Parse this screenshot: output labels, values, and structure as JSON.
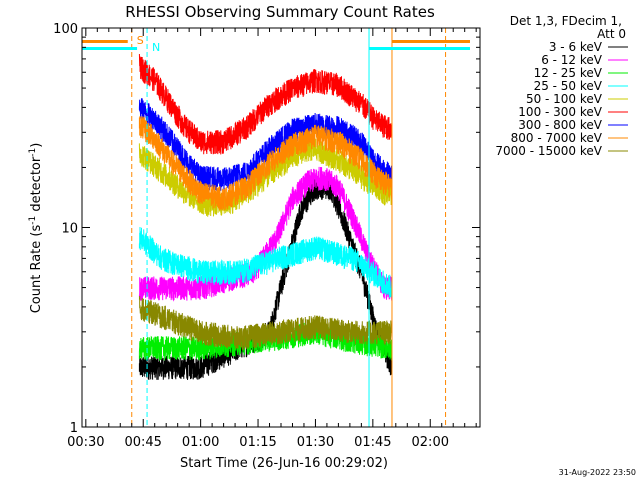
{
  "chart_data": {
    "type": "line",
    "title": "RHESSI Observing Summary Count Rates",
    "xlabel": "Start Time (26-Jun-16 00:29:02)",
    "ylabel": "Count Rate (s",
    "ylabel_sup": "-1",
    "ylabel_suffix": " detector",
    "ylabel_sup2": "-1",
    "ylabel_end": ")",
    "xaxis": {
      "min_minutes": 29,
      "max_minutes": 133,
      "ticks": [
        {
          "label": "00:30",
          "minutes": 30
        },
        {
          "label": "00:45",
          "minutes": 45
        },
        {
          "label": "01:00",
          "minutes": 60
        },
        {
          "label": "01:15",
          "minutes": 75
        },
        {
          "label": "01:30",
          "minutes": 90
        },
        {
          "label": "01:45",
          "minutes": 105
        },
        {
          "label": "02:00",
          "minutes": 120
        }
      ]
    },
    "yaxis": {
      "scale": "log",
      "ylim": [
        1,
        100
      ],
      "ticks": [
        {
          "label": "1",
          "value": 1
        },
        {
          "label": "10",
          "value": 10
        },
        {
          "label": "100",
          "value": 100
        }
      ]
    },
    "legend": {
      "placement": "right",
      "header": [
        "Det 1,3, FDecim 1,",
        "Att 0"
      ]
    },
    "series": [
      {
        "name": "3 - 6 keV",
        "color": "#000000",
        "start": 44,
        "end": 110,
        "points": [
          [
            44,
            2
          ],
          [
            50,
            2
          ],
          [
            60,
            2
          ],
          [
            70,
            2.5
          ],
          [
            78,
            3
          ],
          [
            82,
            6
          ],
          [
            86,
            12
          ],
          [
            90,
            16
          ],
          [
            94,
            16
          ],
          [
            98,
            10
          ],
          [
            102,
            6
          ],
          [
            106,
            3
          ],
          [
            110,
            2
          ]
        ]
      },
      {
        "name": "6 - 12 keV",
        "color": "#ff00ff",
        "start": 44,
        "end": 110,
        "points": [
          [
            44,
            5
          ],
          [
            60,
            5
          ],
          [
            74,
            6
          ],
          [
            80,
            9
          ],
          [
            84,
            14
          ],
          [
            88,
            17
          ],
          [
            92,
            18
          ],
          [
            96,
            16
          ],
          [
            100,
            11
          ],
          [
            104,
            7
          ],
          [
            108,
            5
          ],
          [
            110,
            5
          ]
        ]
      },
      {
        "name": "12 - 25 keV",
        "color": "#00ee00",
        "start": 44,
        "end": 110,
        "points": [
          [
            44,
            2.5
          ],
          [
            60,
            2.5
          ],
          [
            80,
            2.8
          ],
          [
            90,
            3
          ],
          [
            100,
            2.7
          ],
          [
            110,
            2.5
          ]
        ]
      },
      {
        "name": "25 - 50 keV",
        "color": "#00ffff",
        "start": 44,
        "end": 110,
        "points": [
          [
            44,
            9
          ],
          [
            50,
            7
          ],
          [
            60,
            6
          ],
          [
            70,
            6
          ],
          [
            80,
            7
          ],
          [
            90,
            8
          ],
          [
            100,
            7
          ],
          [
            110,
            5
          ]
        ]
      },
      {
        "name": "50 - 100 keV",
        "color": "#cccc00",
        "start": 44,
        "end": 110,
        "points": [
          [
            44,
            24
          ],
          [
            50,
            19
          ],
          [
            56,
            15
          ],
          [
            62,
            13
          ],
          [
            68,
            13.5
          ],
          [
            74,
            16
          ],
          [
            80,
            20
          ],
          [
            86,
            24
          ],
          [
            90,
            25
          ],
          [
            96,
            22
          ],
          [
            102,
            18
          ],
          [
            108,
            15
          ],
          [
            110,
            15
          ]
        ]
      },
      {
        "name": "100 - 300 keV",
        "color": "#ff0000",
        "start": 44,
        "end": 110,
        "points": [
          [
            44,
            65
          ],
          [
            48,
            55
          ],
          [
            52,
            42
          ],
          [
            56,
            32
          ],
          [
            60,
            27
          ],
          [
            66,
            27
          ],
          [
            72,
            32
          ],
          [
            78,
            42
          ],
          [
            84,
            50
          ],
          [
            90,
            55
          ],
          [
            96,
            52
          ],
          [
            102,
            42
          ],
          [
            106,
            34
          ],
          [
            110,
            31
          ]
        ]
      },
      {
        "name": "300 - 800 keV",
        "color": "#0000ff",
        "start": 44,
        "end": 110,
        "points": [
          [
            44,
            40
          ],
          [
            48,
            35
          ],
          [
            52,
            28
          ],
          [
            56,
            22
          ],
          [
            60,
            18
          ],
          [
            66,
            17.5
          ],
          [
            72,
            19
          ],
          [
            78,
            25
          ],
          [
            84,
            31
          ],
          [
            90,
            33
          ],
          [
            96,
            32
          ],
          [
            102,
            27
          ],
          [
            106,
            21
          ],
          [
            110,
            18
          ]
        ]
      },
      {
        "name": "800 - 7000 keV",
        "color": "#ff8800",
        "start": 44,
        "end": 110,
        "points": [
          [
            44,
            33
          ],
          [
            48,
            28
          ],
          [
            52,
            22
          ],
          [
            56,
            18
          ],
          [
            60,
            15
          ],
          [
            66,
            14
          ],
          [
            72,
            16
          ],
          [
            78,
            21
          ],
          [
            84,
            26
          ],
          [
            90,
            29
          ],
          [
            96,
            27
          ],
          [
            102,
            22
          ],
          [
            106,
            18
          ],
          [
            110,
            16
          ]
        ]
      },
      {
        "name": "7000 - 15000 keV",
        "color": "#888800",
        "start": 44,
        "end": 110,
        "points": [
          [
            44,
            4
          ],
          [
            60,
            3
          ],
          [
            70,
            2.8
          ],
          [
            80,
            3
          ],
          [
            90,
            3.2
          ],
          [
            100,
            3
          ],
          [
            110,
            3
          ]
        ]
      }
    ],
    "markers": [
      {
        "label": "S",
        "color": "#ff8800",
        "minutes": 42
      },
      {
        "label": "N",
        "color": "#00ffff",
        "minutes": 46
      }
    ],
    "footer_date": "31-Aug-2022 23:50"
  }
}
